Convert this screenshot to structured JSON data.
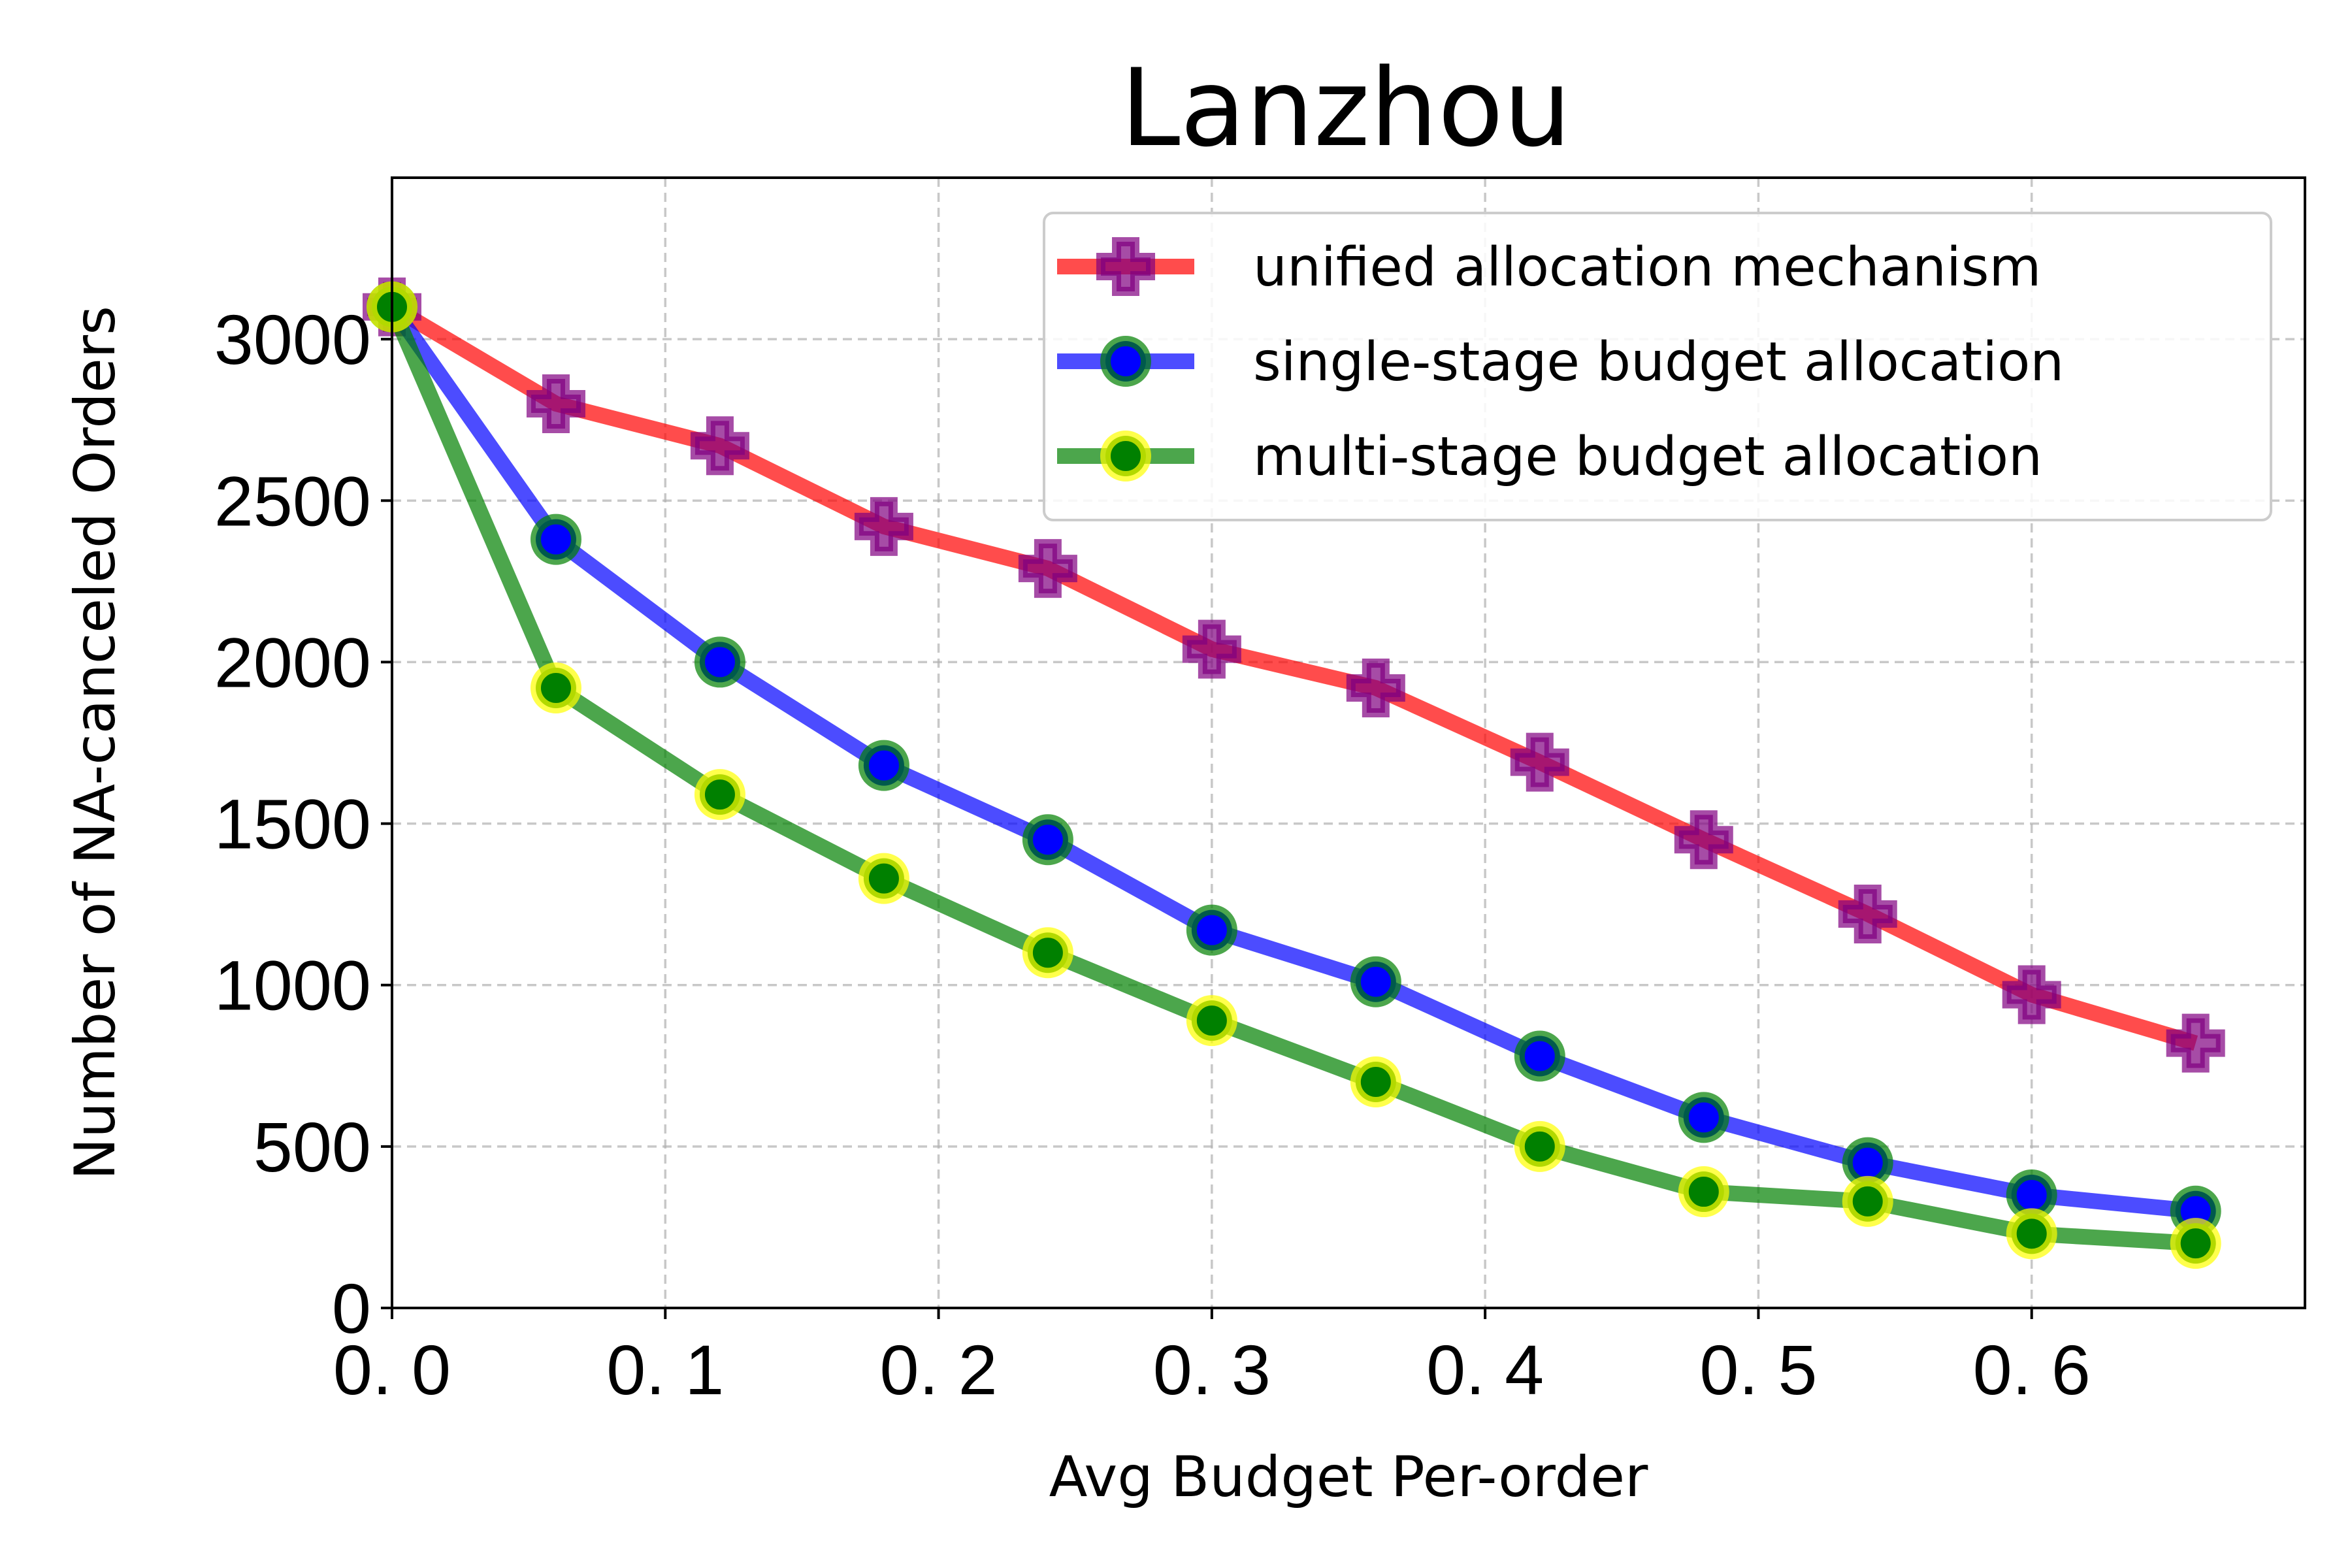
{
  "chart_data": {
    "type": "line",
    "title": "Lanzhou",
    "xlabel": "Avg Budget Per-order",
    "ylabel": "Number of NA-canceled Orders",
    "xlim": [
      0.0,
      0.7
    ],
    "ylim": [
      0,
      3500
    ],
    "x_ticks": [
      0.0,
      0.1,
      0.2,
      0.3,
      0.4,
      0.5,
      0.6
    ],
    "x_tick_labels": [
      "0. 0",
      "0. 1",
      "0. 2",
      "0. 3",
      "0. 4",
      "0. 5",
      "0. 6"
    ],
    "y_ticks": [
      0,
      500,
      1000,
      1500,
      2000,
      2500,
      3000
    ],
    "y_tick_labels": [
      "0",
      "500",
      "1000",
      "1500",
      "2000",
      "2500",
      "3000"
    ],
    "grid": true,
    "legend_position": "top-right",
    "x": [
      0.0,
      0.06,
      0.12,
      0.18,
      0.24,
      0.3,
      0.36,
      0.42,
      0.48,
      0.54,
      0.6,
      0.66
    ],
    "series": [
      {
        "name": "unified allocation mechanism",
        "line_color": "#ff0000",
        "marker": "plus",
        "marker_face": "#800080",
        "marker_edge": "#800080",
        "values": [
          3100,
          2800,
          2670,
          2420,
          2290,
          2040,
          1920,
          1690,
          1450,
          1220,
          970,
          820
        ]
      },
      {
        "name": "single-stage budget allocation",
        "line_color": "#0000ff",
        "marker": "circle",
        "marker_face": "#0000ff",
        "marker_edge": "#008000",
        "values": [
          3100,
          2380,
          2000,
          1680,
          1450,
          1170,
          1010,
          780,
          590,
          450,
          350,
          300
        ]
      },
      {
        "name": "multi-stage budget allocation",
        "line_color": "#008000",
        "marker": "circle",
        "marker_face": "#008000",
        "marker_edge": "#ffff00",
        "values": [
          3100,
          1920,
          1590,
          1330,
          1100,
          890,
          700,
          500,
          360,
          330,
          230,
          200
        ]
      }
    ]
  }
}
